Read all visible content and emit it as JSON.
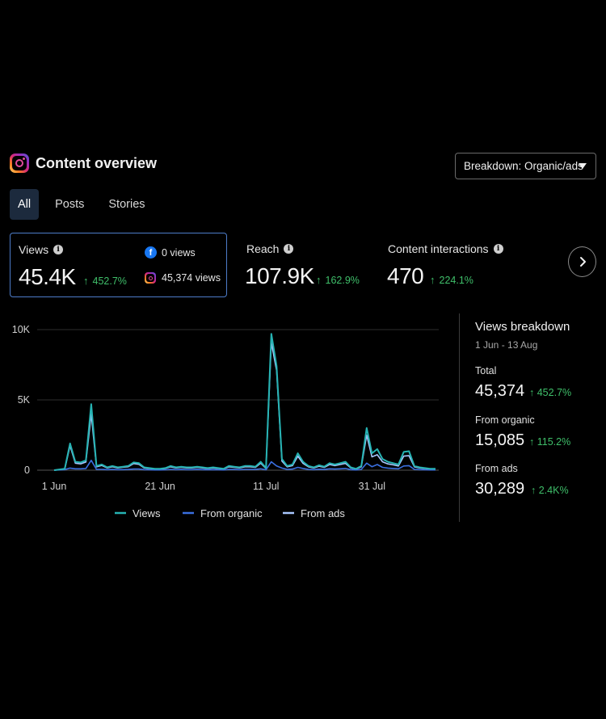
{
  "header": {
    "title": "Content overview",
    "breakdown_label": "Breakdown: Organic/ads"
  },
  "tabs": [
    {
      "label": "All",
      "active": true
    },
    {
      "label": "Posts"
    },
    {
      "label": "Stories"
    }
  ],
  "metrics": {
    "views": {
      "label": "Views",
      "value": "45.4K",
      "delta": "452.7%",
      "facebook": "0 views",
      "instagram": "45,374 views"
    },
    "reach": {
      "label": "Reach",
      "value": "107.9K",
      "delta": "162.9%"
    },
    "interactions": {
      "label": "Content interactions",
      "value": "470",
      "delta": "224.1%"
    }
  },
  "colors": {
    "views": "#26b3b3",
    "organic": "#3a6fe0",
    "ads": "#a9c7ff",
    "positive": "#3fbf6a",
    "accent": "#4d7cc9"
  },
  "legend": {
    "views": "Views",
    "organic": "From organic",
    "ads": "From ads"
  },
  "breakdown": {
    "title": "Views breakdown",
    "range": "1 Jun - 13 Aug",
    "total_label": "Total",
    "total_value": "45,374",
    "total_delta": "452.7%",
    "organic_label": "From organic",
    "organic_value": "15,085",
    "organic_delta": "115.2%",
    "ads_label": "From ads",
    "ads_value": "30,289",
    "ads_delta": "2.4K%"
  },
  "chart_data": {
    "type": "line",
    "x_ticks": [
      "1 Jun",
      "21 Jun",
      "11 Jul",
      "31 Jul"
    ],
    "y_ticks": [
      "0",
      "5K",
      "10K"
    ],
    "ylim": [
      0,
      10000
    ],
    "x_start": "1 Jun",
    "x_end": "13 Aug",
    "series": [
      {
        "name": "Views",
        "color": "#26b3b3",
        "values": [
          0,
          50,
          100,
          1900,
          600,
          550,
          700,
          4700,
          300,
          400,
          200,
          300,
          200,
          250,
          300,
          550,
          500,
          200,
          150,
          100,
          100,
          150,
          300,
          200,
          250,
          200,
          200,
          250,
          200,
          150,
          200,
          150,
          100,
          300,
          250,
          200,
          300,
          300,
          250,
          600,
          150,
          9700,
          7400,
          800,
          300,
          400,
          1200,
          600,
          300,
          200,
          350,
          250,
          500,
          400,
          500,
          600,
          200,
          100,
          300,
          3000,
          1200,
          1500,
          800,
          600,
          500,
          400,
          1300,
          1350,
          300,
          200,
          150,
          100,
          100
        ]
      },
      {
        "name": "From organic",
        "color": "#3a6fe0",
        "values": [
          0,
          20,
          40,
          150,
          100,
          100,
          120,
          700,
          60,
          60,
          40,
          50,
          40,
          40,
          50,
          80,
          80,
          40,
          30,
          20,
          20,
          30,
          60,
          40,
          50,
          40,
          40,
          50,
          40,
          30,
          40,
          30,
          20,
          60,
          50,
          40,
          60,
          60,
          50,
          100,
          30,
          600,
          300,
          150,
          60,
          80,
          200,
          120,
          60,
          40,
          70,
          50,
          100,
          80,
          100,
          120,
          40,
          20,
          60,
          500,
          250,
          400,
          200,
          150,
          120,
          100,
          300,
          320,
          60,
          40,
          30,
          20,
          20
        ]
      },
      {
        "name": "From ads",
        "color": "#a9c7ff",
        "values": [
          0,
          30,
          60,
          1750,
          500,
          450,
          580,
          4000,
          240,
          340,
          160,
          250,
          160,
          210,
          250,
          470,
          420,
          160,
          120,
          80,
          80,
          120,
          240,
          160,
          200,
          160,
          160,
          200,
          160,
          120,
          160,
          120,
          80,
          240,
          200,
          160,
          240,
          240,
          200,
          500,
          120,
          9100,
          7100,
          650,
          240,
          320,
          1000,
          480,
          240,
          160,
          280,
          200,
          400,
          320,
          400,
          480,
          160,
          80,
          240,
          2500,
          950,
          1100,
          600,
          450,
          380,
          300,
          1000,
          1030,
          240,
          160,
          120,
          80,
          80
        ]
      }
    ]
  }
}
